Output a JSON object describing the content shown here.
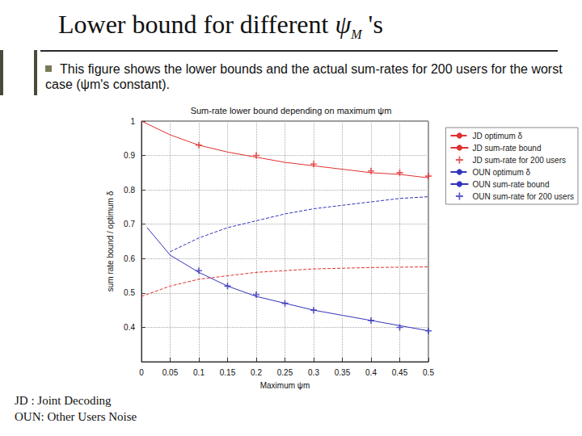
{
  "slide": {
    "title": {
      "text": "Lower bound for different ",
      "symbol": "ψ",
      "subscript": "M",
      "suffix": " 's"
    },
    "bullet": "This figure shows the lower bounds and the actual sum-rates for 200 users for the worst case (ψm's constant).",
    "footer": [
      "JD : Joint Decoding",
      "OUN: Other Users Noise"
    ]
  },
  "chart_data": {
    "type": "line",
    "title": "Sum-rate lower bound depending on maximum ψm",
    "x_label": "Maximum ψm",
    "y_label": "sum rate bound / optimum δ",
    "xlim": [
      0,
      0.5
    ],
    "xticks": [
      0,
      0.05,
      0.1,
      0.15,
      0.2,
      0.25,
      0.3,
      0.35,
      0.4,
      0.45,
      0.5
    ],
    "ylim": [
      0.3,
      1
    ],
    "yticks": [
      0.4,
      0.5,
      0.6,
      0.7,
      0.8,
      0.9,
      1
    ],
    "grid": true,
    "legend": "right",
    "series": [
      {
        "name": "JD optimum δ",
        "type": "line",
        "color": "#e03030",
        "line_style": "dashed",
        "marker": "none",
        "x": [
          0,
          0.05,
          0.1,
          0.15,
          0.2,
          0.25,
          0.3,
          0.35,
          0.4,
          0.45,
          0.5
        ],
        "values": [
          0.49,
          0.52,
          0.54,
          0.55,
          0.56,
          0.565,
          0.57,
          0.572,
          0.574,
          0.575,
          0.576
        ]
      },
      {
        "name": "JD sum-rate bound",
        "type": "line",
        "color": "#e03030",
        "line_style": "solid",
        "marker": "none",
        "x": [
          0,
          0.05,
          0.1,
          0.15,
          0.2,
          0.25,
          0.3,
          0.35,
          0.4,
          0.45,
          0.5
        ],
        "values": [
          1.0,
          0.96,
          0.93,
          0.91,
          0.895,
          0.88,
          0.87,
          0.86,
          0.85,
          0.845,
          0.835
        ]
      },
      {
        "name": "JD sum-rate for 200 users",
        "type": "scatter",
        "color": "#e03030",
        "marker": "plus",
        "x": [
          0.1,
          0.2,
          0.3,
          0.4,
          0.45,
          0.5
        ],
        "values": [
          0.93,
          0.9,
          0.875,
          0.855,
          0.85,
          0.84
        ]
      },
      {
        "name": "OUN optimum δ",
        "type": "line",
        "color": "#3333bb",
        "line_style": "dashed",
        "marker": "none",
        "x": [
          0.05,
          0.1,
          0.15,
          0.2,
          0.25,
          0.3,
          0.35,
          0.4,
          0.45,
          0.5
        ],
        "values": [
          0.62,
          0.66,
          0.69,
          0.71,
          0.73,
          0.745,
          0.755,
          0.765,
          0.775,
          0.78
        ]
      },
      {
        "name": "OUN sum-rate bound",
        "type": "line",
        "color": "#3333bb",
        "line_style": "solid",
        "marker": "none",
        "x": [
          0.01,
          0.05,
          0.1,
          0.15,
          0.2,
          0.25,
          0.3,
          0.35,
          0.4,
          0.45,
          0.5
        ],
        "values": [
          0.69,
          0.61,
          0.56,
          0.52,
          0.49,
          0.47,
          0.45,
          0.435,
          0.42,
          0.405,
          0.39
        ]
      },
      {
        "name": "OUN sum-rate for 200 users",
        "type": "scatter",
        "color": "#3333bb",
        "marker": "plus",
        "x": [
          0.1,
          0.15,
          0.2,
          0.25,
          0.3,
          0.4,
          0.45,
          0.5
        ],
        "values": [
          0.565,
          0.52,
          0.495,
          0.47,
          0.45,
          0.42,
          0.4,
          0.39
        ]
      }
    ]
  }
}
